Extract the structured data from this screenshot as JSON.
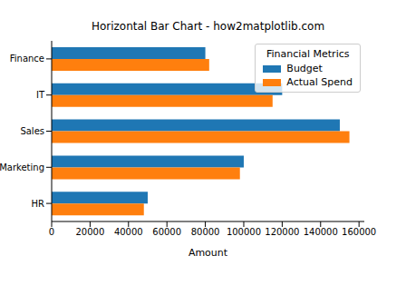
{
  "chart_data": {
    "type": "bar",
    "title": "Horizontal Bar Chart - how2matplotlib.com",
    "orientation": "horizontal",
    "x_label": "Amount",
    "categories": [
      "HR",
      "Marketing",
      "Sales",
      "IT",
      "Finance"
    ],
    "series": [
      {
        "name": "Budget",
        "color": "#1f77b4",
        "values": [
          50000,
          100000,
          150000,
          120000,
          80000
        ]
      },
      {
        "name": "Actual Spend",
        "color": "#ff7f0e",
        "values": [
          48000,
          98000,
          155000,
          115000,
          82000
        ]
      }
    ],
    "xlim": [
      0,
      162750
    ],
    "xticks": [
      0,
      20000,
      40000,
      60000,
      80000,
      100000,
      120000,
      140000,
      160000
    ],
    "grid": false,
    "legend": "upper right",
    "legend_title": "Financial Metrics"
  }
}
